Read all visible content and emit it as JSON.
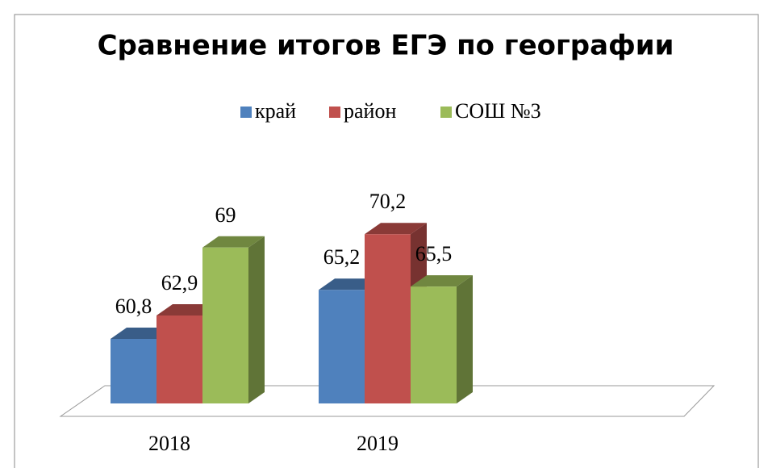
{
  "chart_data": {
    "type": "bar3d",
    "title": "Сравнение итогов ЕГЭ по географии",
    "categories": [
      "2018",
      "2019"
    ],
    "series": [
      {
        "name": "край",
        "color": "#4f81bd",
        "values": [
          60.8,
          65.2
        ],
        "value_labels": [
          "60,8",
          "65,2"
        ]
      },
      {
        "name": "район",
        "color": "#c0504d",
        "values": [
          62.9,
          70.2
        ],
        "value_labels": [
          "62,9",
          "70,2"
        ]
      },
      {
        "name": "СОШ №3",
        "color": "#9bbb59",
        "values": [
          69,
          65.5
        ],
        "value_labels": [
          "69",
          "65,5"
        ]
      }
    ],
    "ylim": [
      55,
      75
    ],
    "legend": "top"
  }
}
